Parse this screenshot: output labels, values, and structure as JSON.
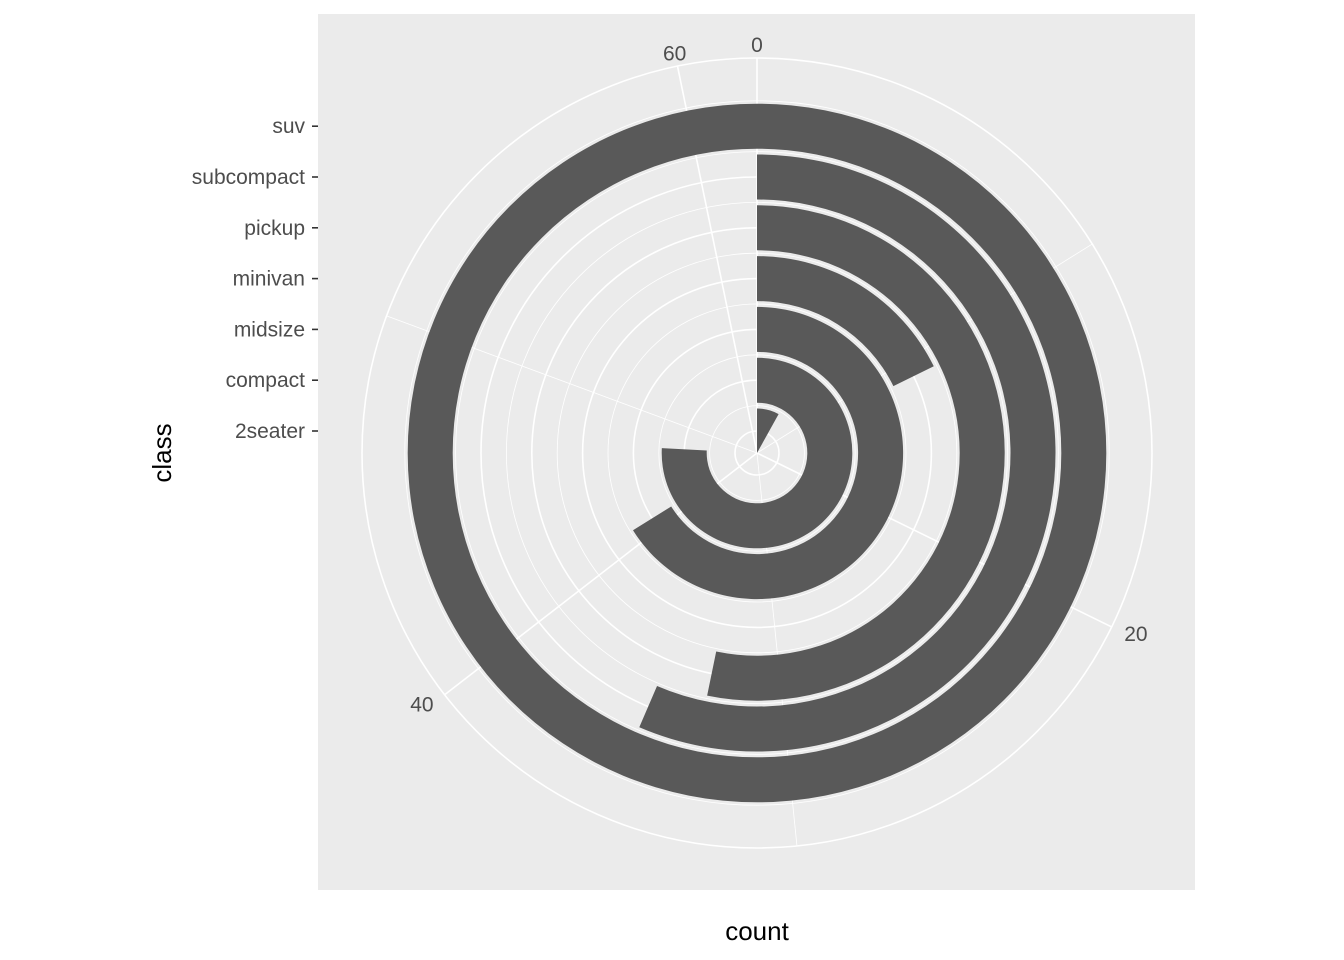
{
  "chart_data": {
    "type": "bar",
    "coord": "polar",
    "orientation": "bars as concentric rings, count mapped to angle (clockwise from top)",
    "categories": [
      "2seater",
      "compact",
      "midsize",
      "minivan",
      "pickup",
      "subcompact",
      "suv"
    ],
    "values": [
      5,
      47,
      41,
      11,
      33,
      35,
      62
    ],
    "xlabel": "count",
    "ylabel": "class",
    "theta_range": [
      0,
      62
    ],
    "theta_ticks": [
      0,
      20,
      40,
      60
    ],
    "theta_tick_labels": [
      "0",
      "20",
      "40",
      "60"
    ],
    "bar_color": "#595959",
    "panel_background": "#ebebeb",
    "grid_color": "#ffffff",
    "grid": true,
    "legend": "none"
  }
}
